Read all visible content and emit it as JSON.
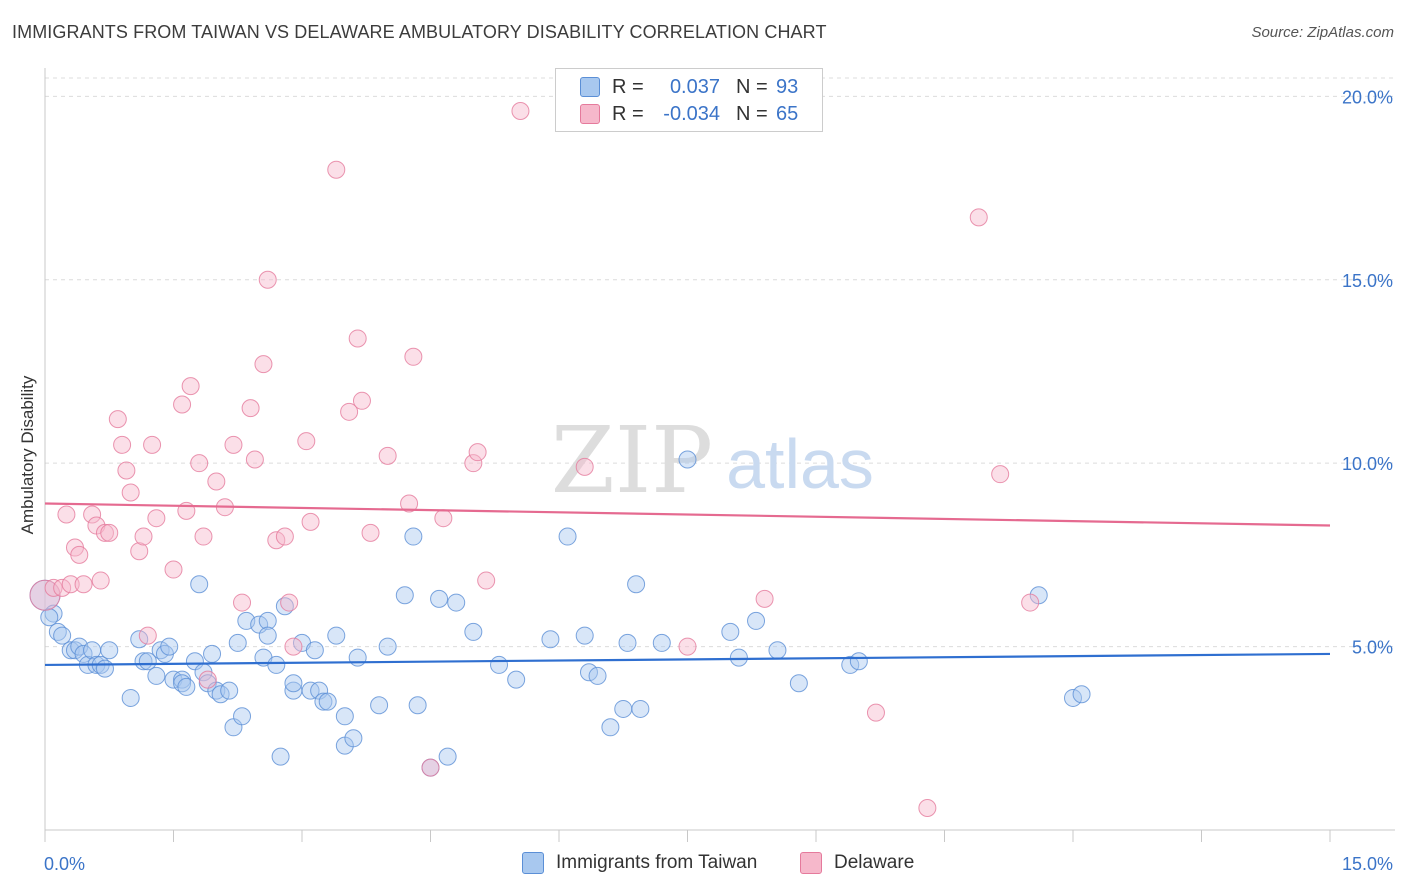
{
  "title": "IMMIGRANTS FROM TAIWAN VS DELAWARE AMBULATORY DISABILITY CORRELATION CHART",
  "source": "Source: ZipAtlas.com",
  "watermark": {
    "zip": "ZIP",
    "atlas": "atlas"
  },
  "legend": {
    "series1": {
      "r_label": "R =",
      "r_value": "0.037",
      "n_label": "N =",
      "n_value": "93"
    },
    "series2": {
      "r_label": "R =",
      "r_value": "-0.034",
      "n_label": "N =",
      "n_value": "65"
    }
  },
  "colors": {
    "blue_fill": "#a8c8ef",
    "blue_stroke": "#5b8fd6",
    "blue_line": "#2f6fd0",
    "pink_fill": "#f6b8cb",
    "pink_stroke": "#e57a9c",
    "pink_line": "#e56a90",
    "tick_label": "#3b74c8",
    "grid": "#dcdcdc"
  },
  "chart_data": {
    "type": "scatter",
    "title": "IMMIGRANTS FROM TAIWAN VS DELAWARE AMBULATORY DISABILITY CORRELATION CHART",
    "xlabel": "",
    "ylabel": "Ambulatory Disability",
    "xlim": [
      0,
      15
    ],
    "ylim": [
      0,
      20.5
    ],
    "x_tick_labels": [
      "0.0%",
      "15.0%"
    ],
    "y_ticks": [
      5,
      10,
      15,
      20
    ],
    "y_tick_labels": [
      "5.0%",
      "10.0%",
      "15.0%",
      "20.0%"
    ],
    "series": [
      {
        "name": "Immigrants from Taiwan",
        "color": "blue",
        "trend": {
          "x": [
            0,
            15
          ],
          "y": [
            4.5,
            4.8
          ]
        },
        "points": [
          [
            0.0,
            6.4
          ],
          [
            0.1,
            5.9
          ],
          [
            0.15,
            5.4
          ],
          [
            0.2,
            5.3
          ],
          [
            0.3,
            4.9
          ],
          [
            0.35,
            4.9
          ],
          [
            0.4,
            5.0
          ],
          [
            0.45,
            4.8
          ],
          [
            0.5,
            4.5
          ],
          [
            0.55,
            4.9
          ],
          [
            0.6,
            4.5
          ],
          [
            0.65,
            4.5
          ],
          [
            0.7,
            4.4
          ],
          [
            0.75,
            4.9
          ],
          [
            1.0,
            3.6
          ],
          [
            1.1,
            5.2
          ],
          [
            1.15,
            4.6
          ],
          [
            1.2,
            4.6
          ],
          [
            1.3,
            4.2
          ],
          [
            1.35,
            4.9
          ],
          [
            1.4,
            4.8
          ],
          [
            1.45,
            5.0
          ],
          [
            1.5,
            4.1
          ],
          [
            1.6,
            4.1
          ],
          [
            1.6,
            4.0
          ],
          [
            1.65,
            3.9
          ],
          [
            1.75,
            4.6
          ],
          [
            1.8,
            6.7
          ],
          [
            1.85,
            4.3
          ],
          [
            1.9,
            4.0
          ],
          [
            1.95,
            4.8
          ],
          [
            2.0,
            3.8
          ],
          [
            2.05,
            3.7
          ],
          [
            2.15,
            3.8
          ],
          [
            2.2,
            2.8
          ],
          [
            2.3,
            3.1
          ],
          [
            2.25,
            5.1
          ],
          [
            2.35,
            5.7
          ],
          [
            2.5,
            5.6
          ],
          [
            2.6,
            5.7
          ],
          [
            2.55,
            4.7
          ],
          [
            2.7,
            4.5
          ],
          [
            2.75,
            2.0
          ],
          [
            2.8,
            6.1
          ],
          [
            2.9,
            3.8
          ],
          [
            2.9,
            4.0
          ],
          [
            3.0,
            5.1
          ],
          [
            3.1,
            3.8
          ],
          [
            3.15,
            4.9
          ],
          [
            3.2,
            3.8
          ],
          [
            3.25,
            3.5
          ],
          [
            3.3,
            3.5
          ],
          [
            3.4,
            5.3
          ],
          [
            3.5,
            2.3
          ],
          [
            3.5,
            3.1
          ],
          [
            3.6,
            2.5
          ],
          [
            3.65,
            4.7
          ],
          [
            3.9,
            3.4
          ],
          [
            4.0,
            5.0
          ],
          [
            4.2,
            6.4
          ],
          [
            4.3,
            8.0
          ],
          [
            4.35,
            3.4
          ],
          [
            4.5,
            1.7
          ],
          [
            4.6,
            6.3
          ],
          [
            4.7,
            2.0
          ],
          [
            4.8,
            6.2
          ],
          [
            5.0,
            5.4
          ],
          [
            5.3,
            4.5
          ],
          [
            5.5,
            4.1
          ],
          [
            5.9,
            5.2
          ],
          [
            6.1,
            8.0
          ],
          [
            6.3,
            5.3
          ],
          [
            6.35,
            4.3
          ],
          [
            6.45,
            4.2
          ],
          [
            6.6,
            2.8
          ],
          [
            6.75,
            3.3
          ],
          [
            6.8,
            5.1
          ],
          [
            6.9,
            6.7
          ],
          [
            6.95,
            3.3
          ],
          [
            7.2,
            5.1
          ],
          [
            7.5,
            10.1
          ],
          [
            8.0,
            5.4
          ],
          [
            8.1,
            4.7
          ],
          [
            8.3,
            5.7
          ],
          [
            8.55,
            4.9
          ],
          [
            8.8,
            4.0
          ],
          [
            9.4,
            4.5
          ],
          [
            9.5,
            4.6
          ],
          [
            11.6,
            6.4
          ],
          [
            12.0,
            3.6
          ],
          [
            12.1,
            3.7
          ],
          [
            0.05,
            5.8
          ],
          [
            2.6,
            5.3
          ]
        ]
      },
      {
        "name": "Delaware",
        "color": "pink",
        "trend": {
          "x": [
            0,
            15
          ],
          "y": [
            8.9,
            8.3
          ]
        },
        "points": [
          [
            0.0,
            6.4
          ],
          [
            0.1,
            6.6
          ],
          [
            0.2,
            6.6
          ],
          [
            0.25,
            8.6
          ],
          [
            0.3,
            6.7
          ],
          [
            0.35,
            7.7
          ],
          [
            0.4,
            7.5
          ],
          [
            0.45,
            6.7
          ],
          [
            0.55,
            8.6
          ],
          [
            0.6,
            8.3
          ],
          [
            0.65,
            6.8
          ],
          [
            0.7,
            8.1
          ],
          [
            0.75,
            8.1
          ],
          [
            0.85,
            11.2
          ],
          [
            0.9,
            10.5
          ],
          [
            0.95,
            9.8
          ],
          [
            1.0,
            9.2
          ],
          [
            1.1,
            7.6
          ],
          [
            1.15,
            8.0
          ],
          [
            1.2,
            5.3
          ],
          [
            1.25,
            10.5
          ],
          [
            1.3,
            8.5
          ],
          [
            1.5,
            7.1
          ],
          [
            1.6,
            11.6
          ],
          [
            1.65,
            8.7
          ],
          [
            1.7,
            12.1
          ],
          [
            1.8,
            10.0
          ],
          [
            1.85,
            8.0
          ],
          [
            1.9,
            4.1
          ],
          [
            2.0,
            9.5
          ],
          [
            2.1,
            8.8
          ],
          [
            2.2,
            10.5
          ],
          [
            2.3,
            6.2
          ],
          [
            2.4,
            11.5
          ],
          [
            2.45,
            10.1
          ],
          [
            2.55,
            12.7
          ],
          [
            2.6,
            15.0
          ],
          [
            2.7,
            7.9
          ],
          [
            2.8,
            8.0
          ],
          [
            2.85,
            6.2
          ],
          [
            2.9,
            5.0
          ],
          [
            3.05,
            10.6
          ],
          [
            3.1,
            8.4
          ],
          [
            3.4,
            18.0
          ],
          [
            3.55,
            11.4
          ],
          [
            3.65,
            13.4
          ],
          [
            3.7,
            11.7
          ],
          [
            3.8,
            8.1
          ],
          [
            4.0,
            10.2
          ],
          [
            4.25,
            8.9
          ],
          [
            4.3,
            12.9
          ],
          [
            4.5,
            1.7
          ],
          [
            4.65,
            8.5
          ],
          [
            5.0,
            10.0
          ],
          [
            5.05,
            10.3
          ],
          [
            5.15,
            6.8
          ],
          [
            5.55,
            19.6
          ],
          [
            6.3,
            9.9
          ],
          [
            7.5,
            5.0
          ],
          [
            8.4,
            6.3
          ],
          [
            9.7,
            3.2
          ],
          [
            10.3,
            0.6
          ],
          [
            10.9,
            16.7
          ],
          [
            11.15,
            9.7
          ],
          [
            11.5,
            6.2
          ]
        ]
      }
    ]
  },
  "bottom_legend": [
    "Immigrants from Taiwan",
    "Delaware"
  ]
}
